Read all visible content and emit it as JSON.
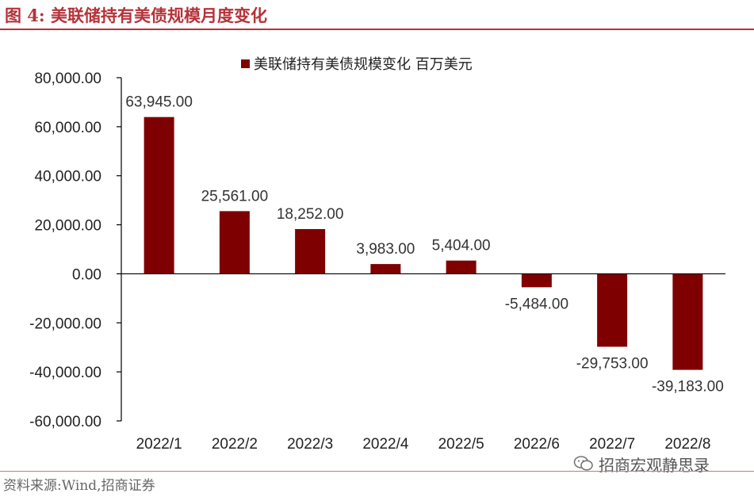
{
  "header": {
    "title": "图 4:  美联储持有美债规模月度变化"
  },
  "footer": {
    "source": "资料来源:Wind,招商证券",
    "watermark": "招商宏观静思录"
  },
  "colors": {
    "bar": "#7f0000",
    "title": "#b5333a",
    "axis": "#000000"
  },
  "chart_data": {
    "type": "bar",
    "title": "",
    "xlabel": "",
    "ylabel": "",
    "categories": [
      "2022/1",
      "2022/2",
      "2022/3",
      "2022/4",
      "2022/5",
      "2022/6",
      "2022/7",
      "2022/8"
    ],
    "series": [
      {
        "name": "美联储持有美债规模变化 百万美元",
        "values": [
          63945.0,
          25561.0,
          18252.0,
          3983.0,
          5404.0,
          -5484.0,
          -29753.0,
          -39183.0
        ],
        "labels": [
          "63,945.00",
          "25,561.00",
          "18,252.00",
          "3,983.00",
          "5,404.00",
          "-5,484.00",
          "-29,753.00",
          "-39,183.00"
        ]
      }
    ],
    "ylim": [
      -60000,
      80000
    ],
    "yticks": [
      80000,
      60000,
      40000,
      20000,
      0,
      -20000,
      -40000,
      -60000
    ],
    "ytick_labels": [
      "80,000.00",
      "60,000.00",
      "40,000.00",
      "20,000.00",
      "0.00",
      "-20,000.00",
      "-40,000.00",
      "-60,000.00"
    ],
    "grid": false,
    "legend": "top-center"
  }
}
